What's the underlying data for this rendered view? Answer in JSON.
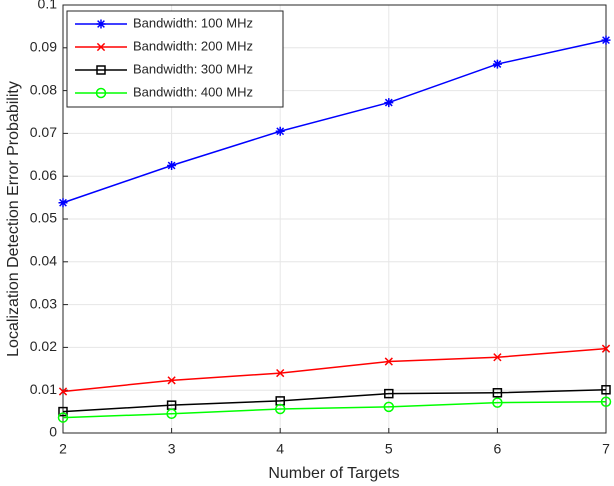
{
  "chart_data": {
    "type": "line",
    "x_label": "Number of Targets",
    "y_label": "Localization Detection Error Probability",
    "x": [
      2,
      3,
      4,
      5,
      6,
      7
    ],
    "xlim": [
      2,
      7
    ],
    "xticks": [
      2,
      3,
      4,
      5,
      6,
      7
    ],
    "ylim": [
      0,
      0.1
    ],
    "yticks": [
      0,
      0.01,
      0.02,
      0.03,
      0.04,
      0.05,
      0.06,
      0.07,
      0.08,
      0.09,
      0.1
    ],
    "grid": true,
    "legend_position": "upper-left",
    "series": [
      {
        "name": "Bandwidth: 100 MHz",
        "color": "#0000ff",
        "marker": "star",
        "values": [
          0.0538,
          0.0625,
          0.0705,
          0.0772,
          0.0862,
          0.0918
        ]
      },
      {
        "name": "Bandwidth: 200 MHz",
        "color": "#ff0000",
        "marker": "x",
        "values": [
          0.0097,
          0.0123,
          0.014,
          0.0167,
          0.0177,
          0.0197
        ]
      },
      {
        "name": "Bandwidth: 300 MHz",
        "color": "#000000",
        "marker": "square",
        "values": [
          0.005,
          0.0065,
          0.0075,
          0.0092,
          0.0094,
          0.0101
        ]
      },
      {
        "name": "Bandwidth: 400 MHz",
        "color": "#00ff00",
        "marker": "circle",
        "values": [
          0.0036,
          0.0045,
          0.0056,
          0.0061,
          0.0071,
          0.0073
        ]
      }
    ]
  }
}
